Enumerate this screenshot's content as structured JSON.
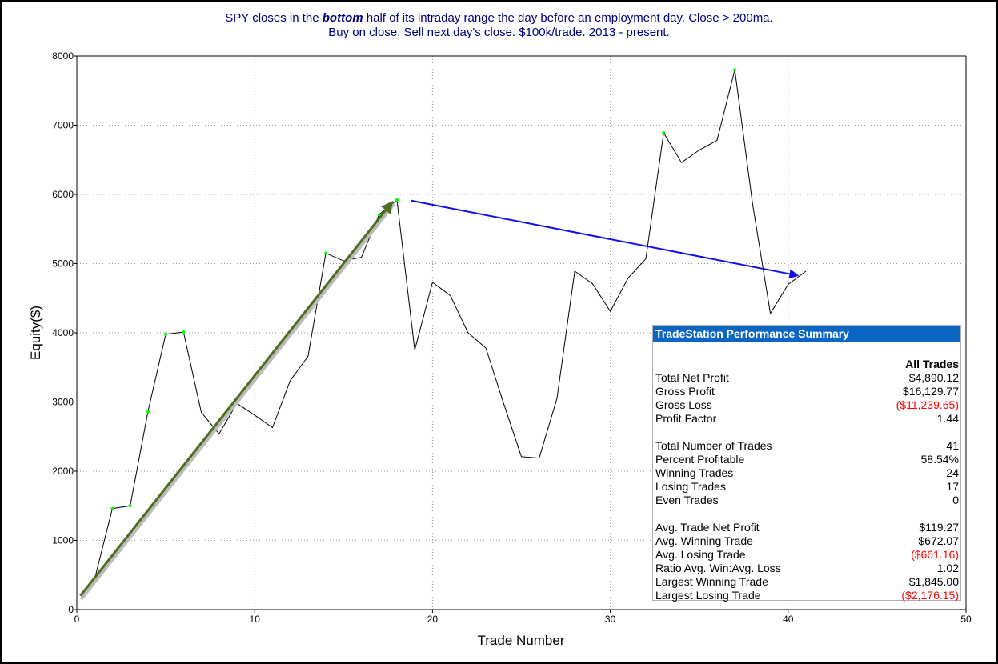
{
  "title": {
    "line1_pre": "SPY closes in the ",
    "line1_emph": "bottom",
    "line1_post": " half of its intraday range the day before an employment day. Close > 200ma.",
    "line2": "Buy on close. Sell next day's close. $100k/trade. 2013 - present."
  },
  "colors": {
    "title": "#000080",
    "equity_line": "#000000",
    "new_high_marker": "#00ff00",
    "up_arrow": "#4a6e1e",
    "down_arrow": "#1010ee",
    "summary_header": "#0a66c2",
    "negative": "#ff0000"
  },
  "chart_data": {
    "type": "line",
    "xlabel": "Trade Number",
    "ylabel": "Equity($)",
    "xlim": [
      0,
      50
    ],
    "ylim": [
      0,
      8000
    ],
    "x_ticks": [
      0,
      10,
      20,
      30,
      40,
      50
    ],
    "y_ticks": [
      0,
      1000,
      2000,
      3000,
      4000,
      5000,
      6000,
      7000,
      8000
    ],
    "grid": "dotted",
    "series": [
      {
        "x": [
          1,
          2,
          3,
          4,
          5,
          6,
          7,
          8,
          9,
          10,
          11,
          12,
          13,
          14,
          15,
          16,
          17,
          18,
          19,
          20,
          21,
          22,
          23,
          24,
          25,
          26,
          27,
          28,
          29,
          30,
          31,
          32,
          33,
          34,
          35,
          36,
          37,
          38,
          39,
          40,
          41
        ],
        "values": [
          440,
          1460,
          1500,
          2860,
          3980,
          4010,
          2850,
          2540,
          2980,
          2810,
          2630,
          3310,
          3660,
          5150,
          5040,
          5090,
          5710,
          5920,
          3750,
          4730,
          4540,
          4000,
          3780,
          2980,
          2210,
          2190,
          3050,
          4890,
          4710,
          4310,
          4790,
          5070,
          6890,
          6460,
          6640,
          6780,
          7800,
          5860,
          4280,
          4700,
          4890
        ]
      }
    ],
    "new_high_points": [
      1,
      2,
      3,
      4,
      5,
      6,
      14,
      17,
      18,
      33,
      37
    ],
    "annotations": [
      {
        "type": "arrow",
        "from": [
          0.2,
          200
        ],
        "to": [
          17.7,
          5880
        ],
        "color": "#4a6e1e"
      },
      {
        "type": "arrow",
        "from": [
          18.8,
          5910
        ],
        "to": [
          40.5,
          4830
        ],
        "color": "#1010ee"
      }
    ]
  },
  "summary": {
    "header": "TradeStation Performance Summary",
    "column": "All Trades",
    "rows": [
      {
        "label": "Total Net Profit",
        "value": "$4,890.12"
      },
      {
        "label": "Gross Profit",
        "value": "$16,129.77"
      },
      {
        "label": "Gross Loss",
        "value": "($11,239.65)",
        "neg": true
      },
      {
        "label": "Profit Factor",
        "value": "1.44"
      },
      {
        "gap": true
      },
      {
        "label": "Total Number of Trades",
        "value": "41"
      },
      {
        "label": "Percent Profitable",
        "value": "58.54%"
      },
      {
        "label": "Winning Trades",
        "value": "24"
      },
      {
        "label": "Losing Trades",
        "value": "17"
      },
      {
        "label": "Even Trades",
        "value": "0"
      },
      {
        "gap": true
      },
      {
        "label": "Avg. Trade Net Profit",
        "value": "$119.27"
      },
      {
        "label": "Avg. Winning Trade",
        "value": "$672.07"
      },
      {
        "label": "Avg. Losing Trade",
        "value": "($661.16)",
        "neg": true
      },
      {
        "label": "Ratio Avg. Win:Avg. Loss",
        "value": "1.02"
      },
      {
        "label": "Largest Winning Trade",
        "value": "$1,845.00"
      },
      {
        "label": "Largest Losing Trade",
        "value": "($2,176.15)",
        "neg": true
      }
    ]
  }
}
